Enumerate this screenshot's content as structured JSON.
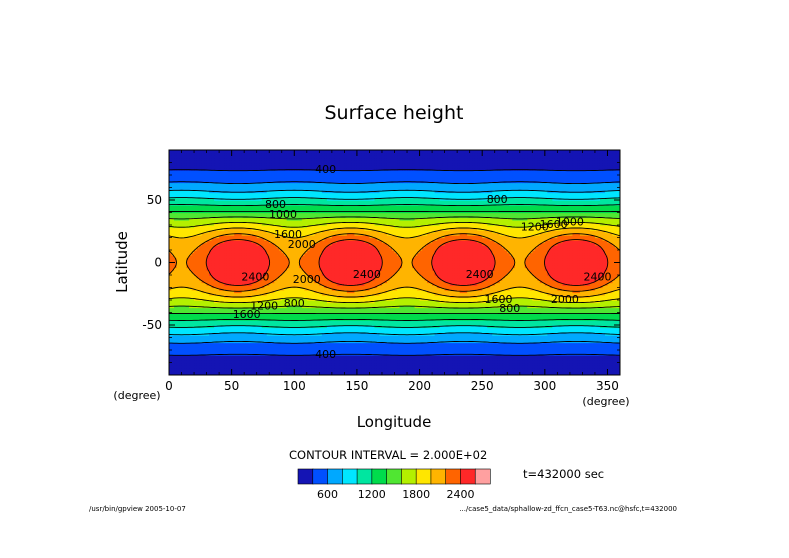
{
  "chart_data": {
    "type": "contour",
    "title": "Surface height",
    "xlabel": "Longitude",
    "ylabel": "Latitude",
    "x_unit": "(degree)",
    "y_unit": "(degree)",
    "xlim": [
      0,
      360
    ],
    "ylim": [
      -90,
      90
    ],
    "x_ticks": [
      "0",
      "50",
      "100",
      "150",
      "200",
      "250",
      "300",
      "350"
    ],
    "y_ticks": [
      "50",
      "0",
      "-50"
    ],
    "field": {
      "zonal_wavenumber": 4,
      "high_centers_lon": [
        55,
        145,
        235,
        325
      ],
      "high_center_lat": 0,
      "max_value": 2600,
      "min_value": 200
    },
    "contour_interval_label": "CONTOUR INTERVAL = 2.000E+02",
    "contour_levels": [
      400,
      600,
      800,
      1000,
      1200,
      1400,
      1600,
      1800,
      2000,
      2200,
      2400
    ],
    "contour_labels": [
      {
        "text": "400",
        "lon": 125,
        "lat": 74
      },
      {
        "text": "400",
        "lon": 125,
        "lat": -74
      },
      {
        "text": "800",
        "lon": 85,
        "lat": 46
      },
      {
        "text": "1000",
        "lon": 91,
        "lat": 38
      },
      {
        "text": "1600",
        "lon": 95,
        "lat": 22
      },
      {
        "text": "2000",
        "lon": 106,
        "lat": 14
      },
      {
        "text": "2400",
        "lon": 69,
        "lat": -12
      },
      {
        "text": "2000",
        "lon": 110,
        "lat": -14
      },
      {
        "text": "2400",
        "lon": 158,
        "lat": -10
      },
      {
        "text": "800",
        "lon": 100,
        "lat": -33
      },
      {
        "text": "1200",
        "lon": 76,
        "lat": -35
      },
      {
        "text": "1600",
        "lon": 62,
        "lat": -42
      },
      {
        "text": "800",
        "lon": 262,
        "lat": 50
      },
      {
        "text": "1200",
        "lon": 292,
        "lat": 28
      },
      {
        "text": "1600",
        "lon": 307,
        "lat": 30
      },
      {
        "text": "1000",
        "lon": 320,
        "lat": 32
      },
      {
        "text": "2400",
        "lon": 248,
        "lat": -10
      },
      {
        "text": "1600",
        "lon": 263,
        "lat": -30
      },
      {
        "text": "800",
        "lon": 272,
        "lat": -37
      },
      {
        "text": "2000",
        "lon": 316,
        "lat": -30
      },
      {
        "text": "2400",
        "lon": 342,
        "lat": -12
      }
    ],
    "colorbar": {
      "colors": [
        "#1414b4",
        "#0050ff",
        "#00a8ff",
        "#00e6ff",
        "#00e6a0",
        "#00dc4c",
        "#50e632",
        "#b4f000",
        "#ffe600",
        "#ffb400",
        "#ff6400",
        "#ff2828",
        "#ffa0a0"
      ],
      "labels": [
        "600",
        "1200",
        "1800",
        "2400"
      ]
    },
    "time_label": "t=432000 sec",
    "footer_left": "/usr/bin/gpview  2005-10-07",
    "footer_right": ".../case5_data/sphallow-zd_ffcn_case5-T63.nc@hsfc,t=432000"
  }
}
